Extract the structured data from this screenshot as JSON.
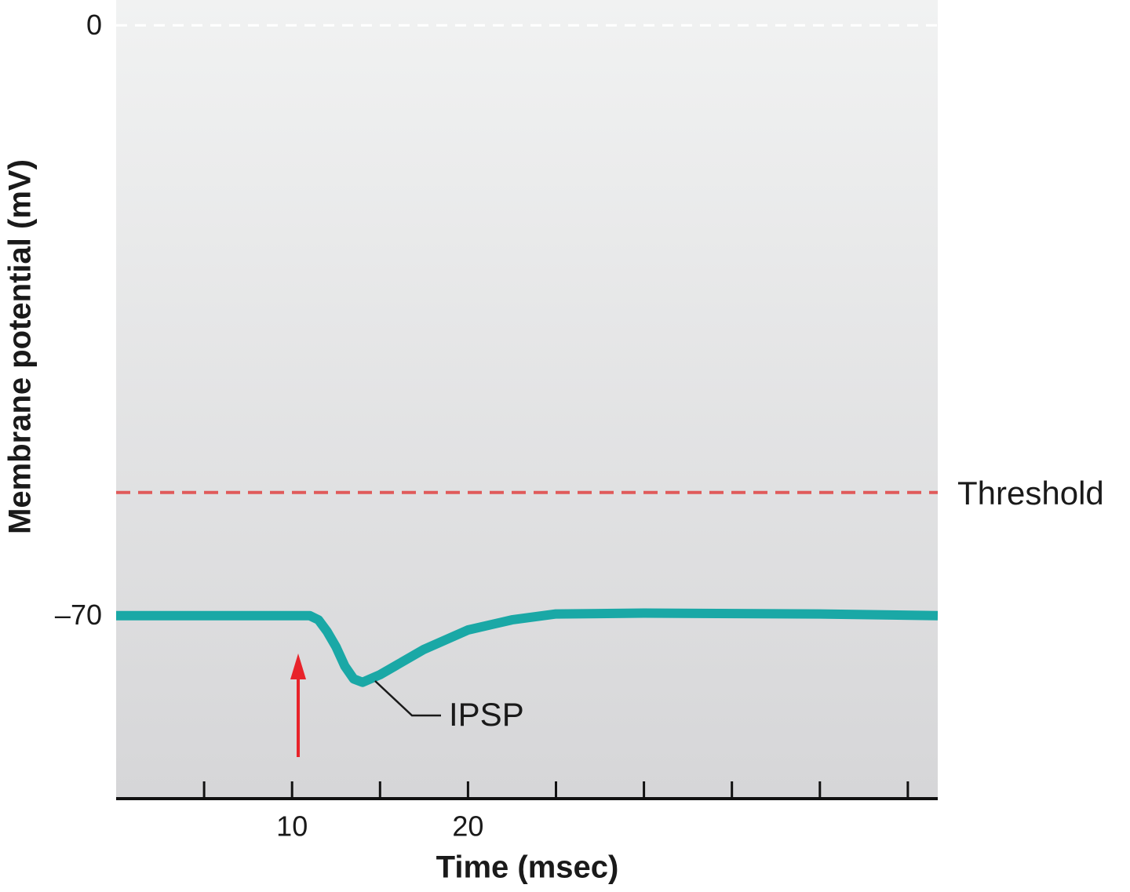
{
  "chart_data": {
    "type": "line",
    "x": [
      0,
      10,
      11,
      11.5,
      12,
      12.5,
      13,
      13.5,
      14,
      15,
      16,
      17.5,
      20,
      22.5,
      25,
      30,
      40,
      46.7
    ],
    "values": [
      -70,
      -70,
      -70,
      -70.5,
      -71.9,
      -73.7,
      -76,
      -77.5,
      -77.9,
      -77,
      -75.8,
      -74,
      -71.7,
      -70.5,
      -69.8,
      -69.7,
      -69.8,
      -70
    ],
    "color": "#1aa8a6",
    "xlim": [
      0,
      46.7
    ],
    "ylim": [
      -91.7,
      3
    ],
    "xticks": [
      10,
      20
    ],
    "xminor_ticks": [
      5,
      15,
      25,
      30,
      35,
      40,
      45
    ],
    "yticks": [
      0,
      {
        "value": -70,
        "label": "–70"
      }
    ],
    "zero_line": 0,
    "threshold": {
      "value": -55.4,
      "label": "Threshold",
      "color": "#e05a5a"
    },
    "xlabel": "Time (msec)",
    "ylabel": "Membrane potential (mV)",
    "annotation": "IPSP"
  }
}
